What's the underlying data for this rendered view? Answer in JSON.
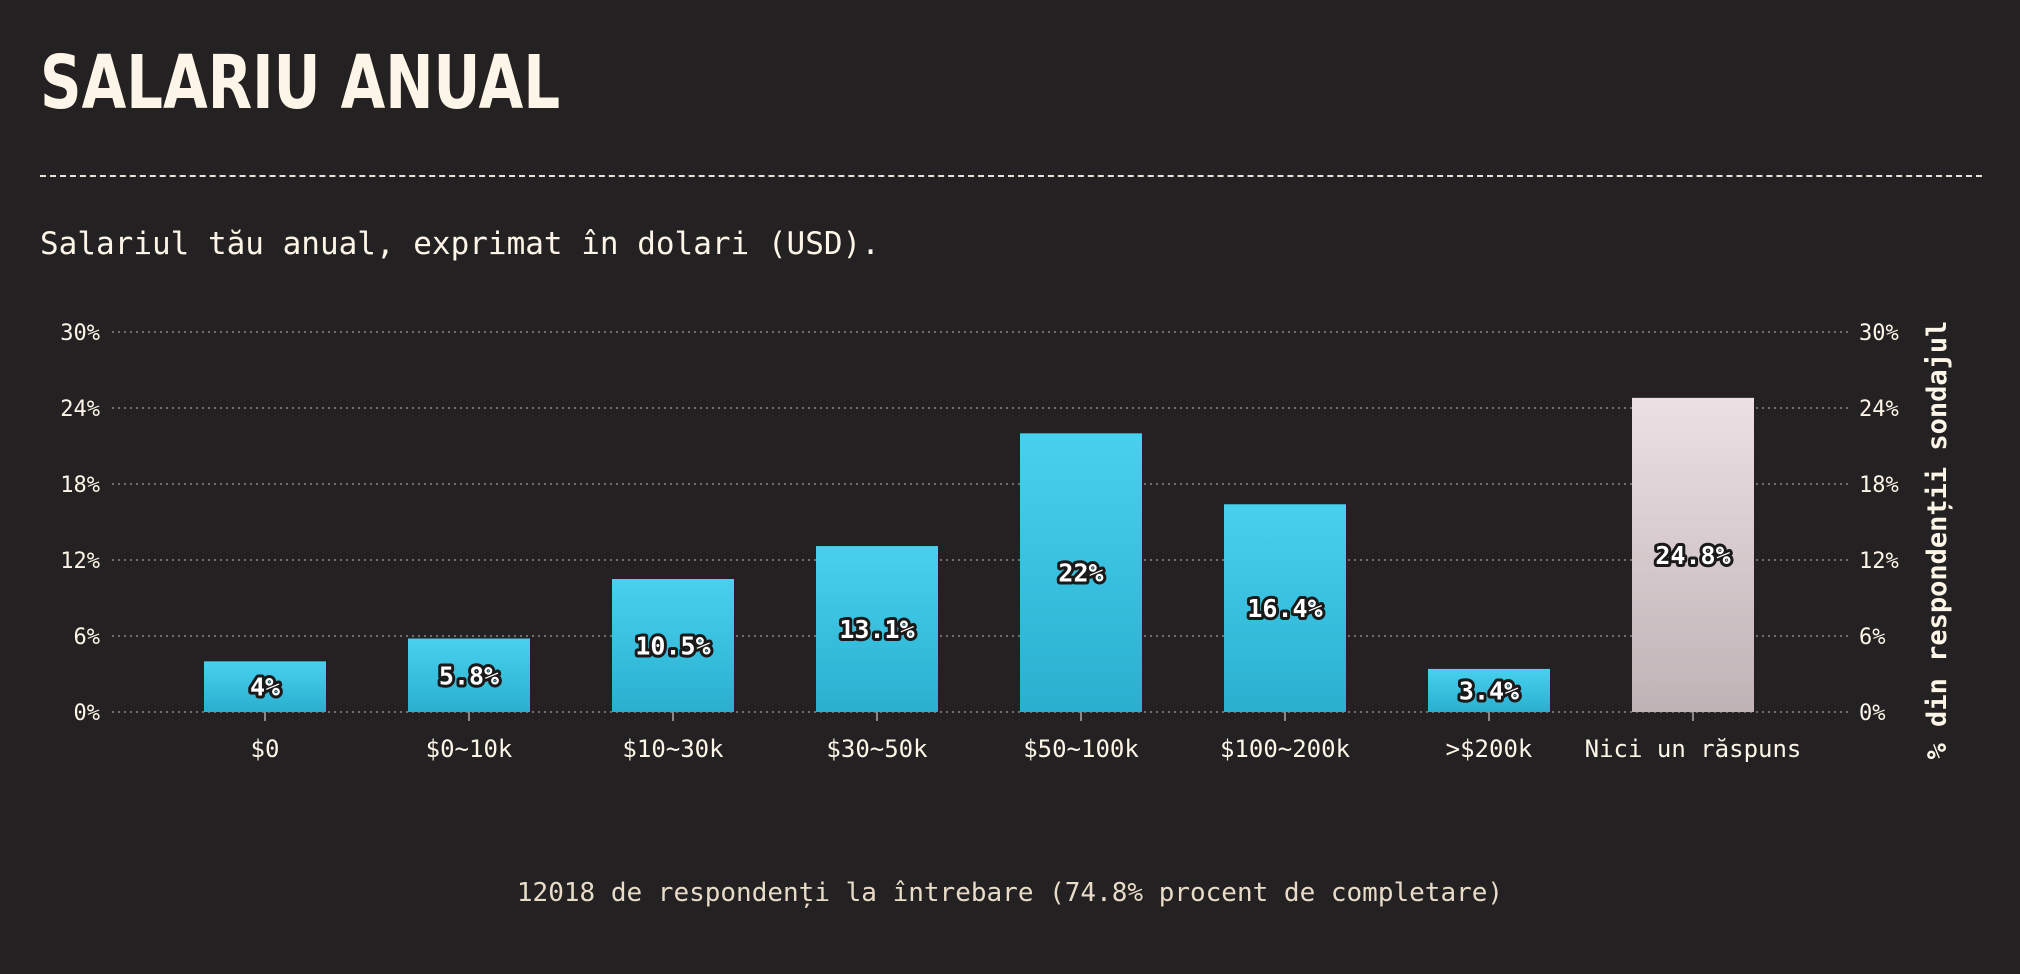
{
  "title": "SALARIU ANUAL",
  "question": "Salariul tău anual, exprimat în dolari (USD).",
  "footer": "12018 de respondenți la întrebare (74.8% procent de completare)",
  "colors": {
    "background": "#242123",
    "bar_top": "#48d1ef",
    "bar_bottom": "#2aafcf",
    "no_answer_top": "#ece0e4",
    "no_answer_bottom": "#bfb3b6",
    "grid": "#8d8787",
    "text": "#fdf6e8"
  },
  "chart_data": {
    "type": "bar",
    "categories": [
      "$0",
      "$0~10k",
      "$10~30k",
      "$30~50k",
      "$50~100k",
      "$100~200k",
      ">$200k",
      "Nici un răspuns"
    ],
    "values": [
      4,
      5.8,
      10.5,
      13.1,
      22,
      16.4,
      3.4,
      24.8
    ],
    "value_labels": [
      "4%",
      "5.8%",
      "10.5%",
      "13.1%",
      "22%",
      "16.4%",
      "3.4%",
      "24.8%"
    ],
    "highlight_category": "Nici un răspuns",
    "ylim": [
      0,
      30
    ],
    "yticks": [
      0,
      6,
      12,
      18,
      24,
      30
    ],
    "ytick_labels": [
      "0%",
      "6%",
      "12%",
      "18%",
      "24%",
      "30%"
    ],
    "y_axis_right_label": "% din respondenții sondajul",
    "grid": true,
    "legend": "none"
  }
}
